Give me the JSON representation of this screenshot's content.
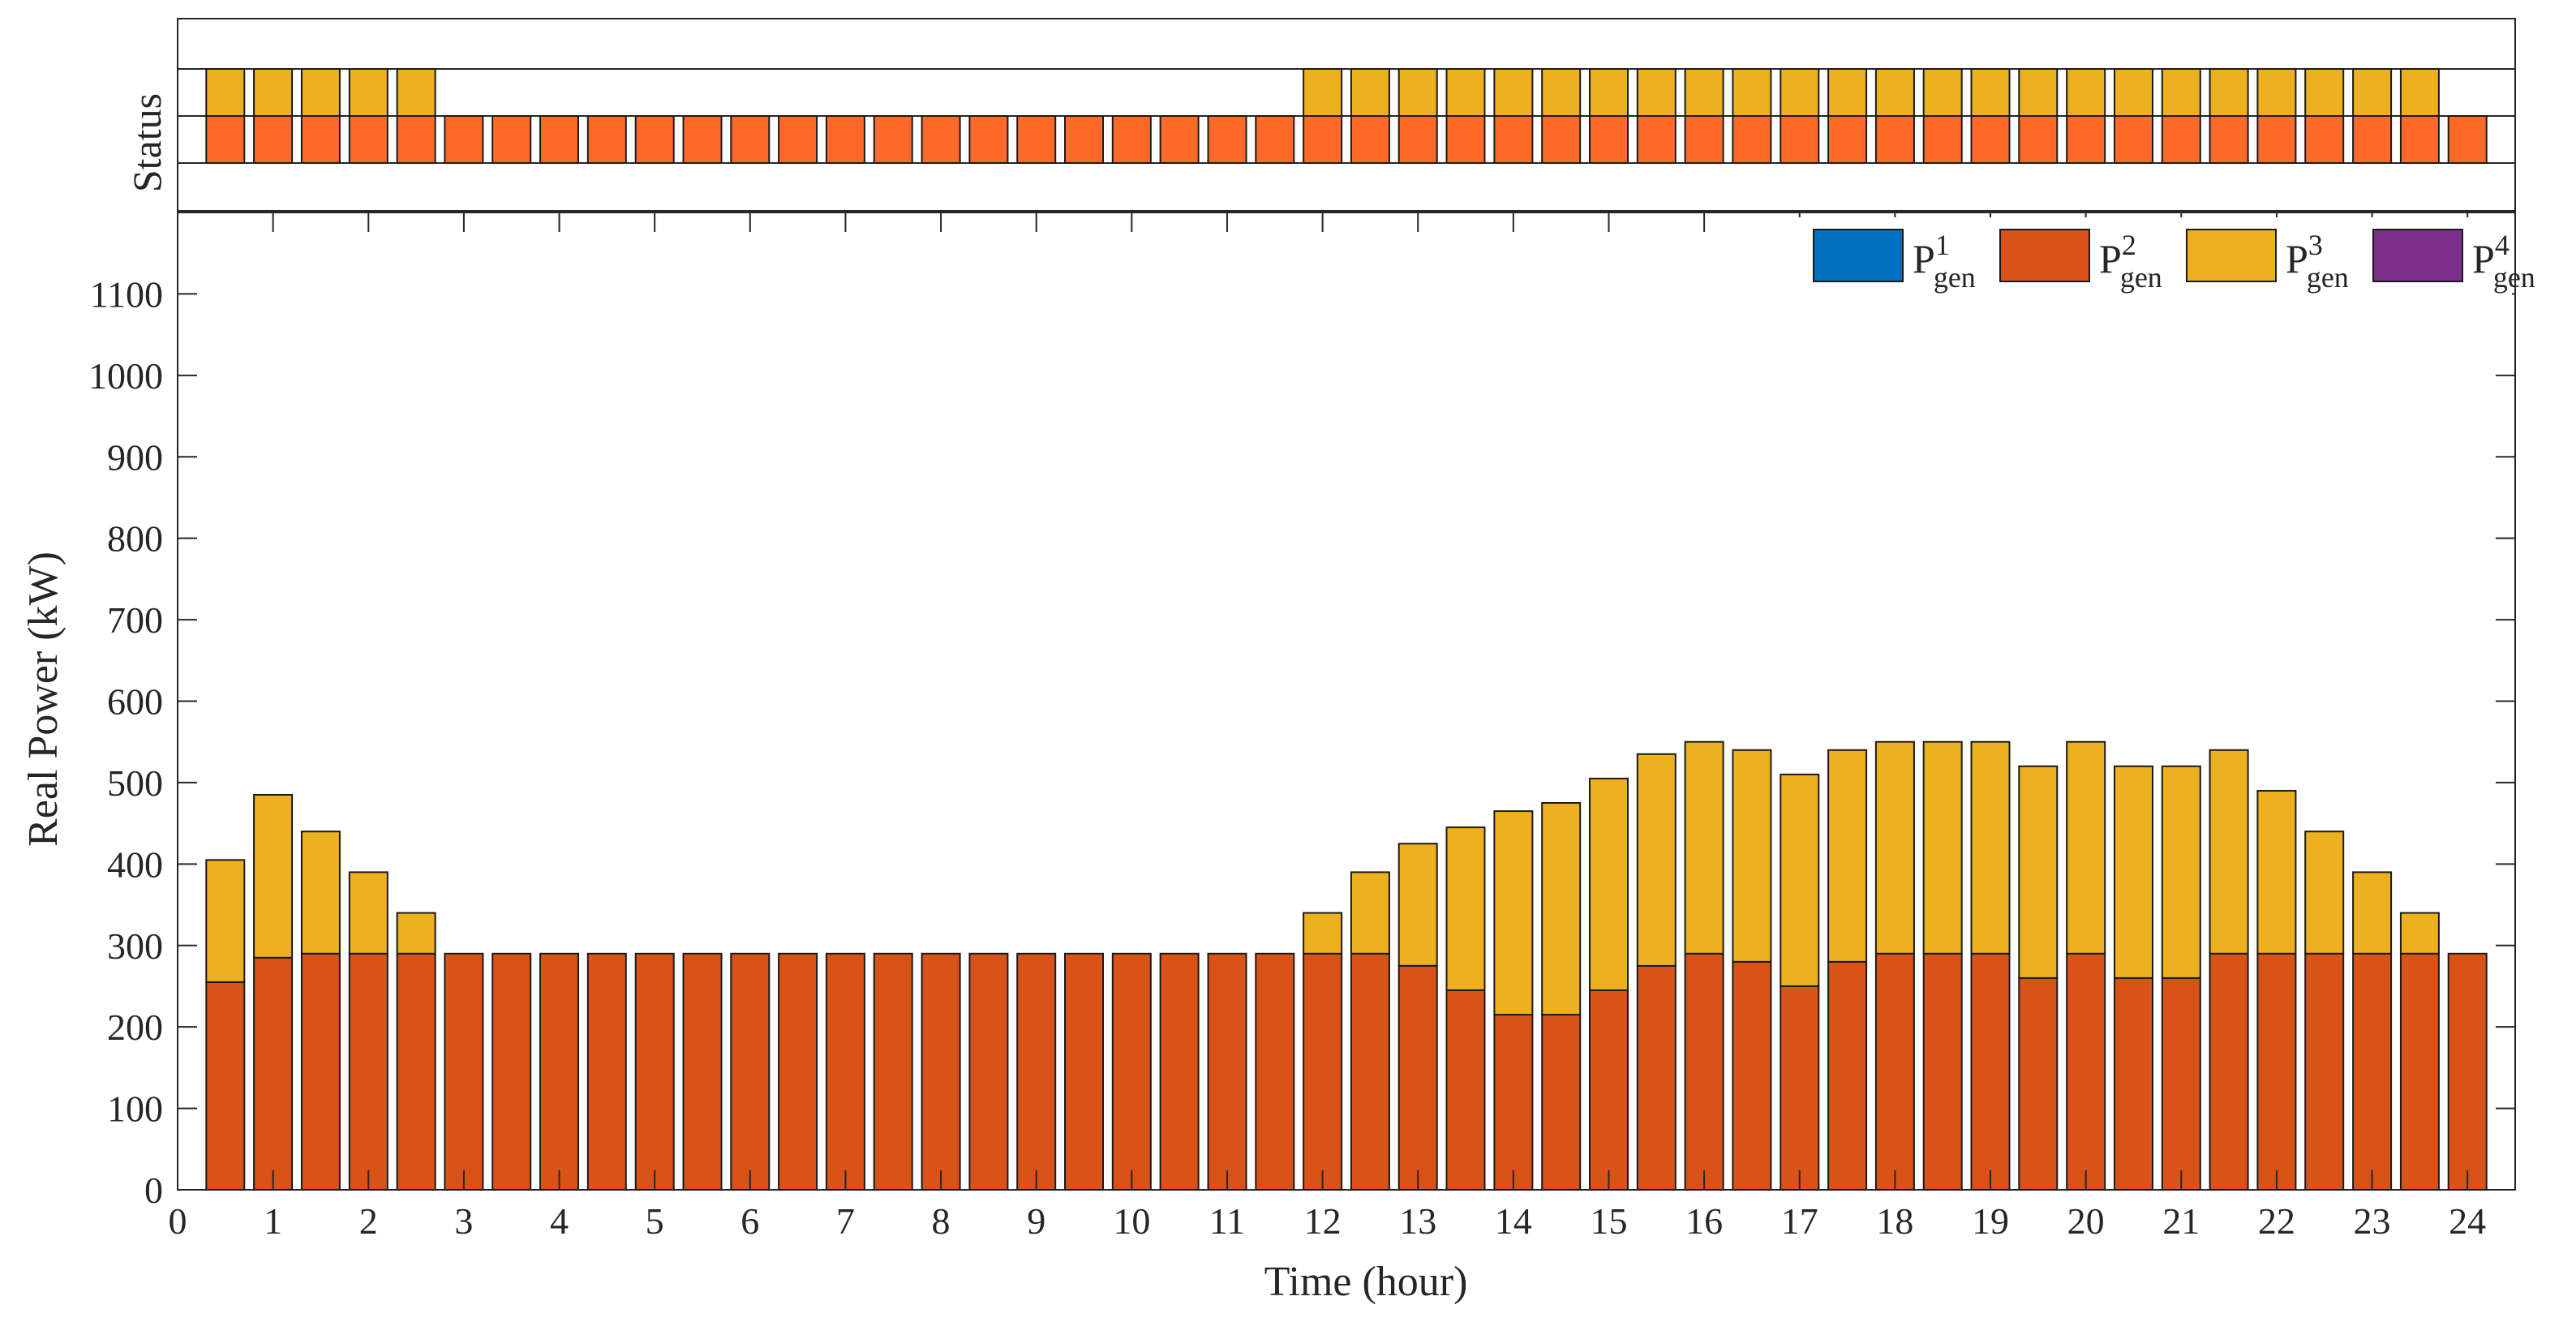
{
  "chart_data": {
    "type": "bar",
    "stacked": true,
    "xlabel": "Time (hour)",
    "ylabel": "Real Power (kW)",
    "status_label": "Status",
    "xlim": [
      0,
      24.5
    ],
    "ylim": [
      0,
      1200
    ],
    "x_ticks": [
      "0",
      "1",
      "2",
      "3",
      "4",
      "5",
      "6",
      "7",
      "8",
      "9",
      "10",
      "11",
      "12",
      "13",
      "14",
      "15",
      "16",
      "17",
      "18",
      "19",
      "20",
      "21",
      "22",
      "23",
      "24"
    ],
    "y_ticks": [
      "0",
      "100",
      "200",
      "300",
      "400",
      "500",
      "600",
      "700",
      "800",
      "900",
      "1000",
      "1100"
    ],
    "legend": {
      "position": "top-right",
      "entries": [
        {
          "base": "P",
          "sup": "1",
          "sub": "gen",
          "color": "#0072BD"
        },
        {
          "base": "P",
          "sup": "2",
          "sub": "gen",
          "color": "#D95319"
        },
        {
          "base": "P",
          "sup": "3",
          "sub": "gen",
          "color": "#EDB120"
        },
        {
          "base": "P",
          "sup": "4",
          "sub": "gen",
          "color": "#7E2F8E"
        }
      ]
    },
    "x": [
      0.5,
      1,
      1.5,
      2,
      2.5,
      3,
      3.5,
      4,
      4.5,
      5,
      5.5,
      6,
      6.5,
      7,
      7.5,
      8,
      8.5,
      9,
      9.5,
      10,
      10.5,
      11,
      11.5,
      12,
      12.5,
      13,
      13.5,
      14,
      14.5,
      15,
      15.5,
      16,
      16.5,
      17,
      17.5,
      18,
      18.5,
      19,
      19.5,
      20,
      20.5,
      21,
      21.5,
      22,
      22.5,
      23,
      23.5,
      24
    ],
    "series": [
      {
        "name": "P1_gen",
        "color": "#0072BD",
        "values": [
          0,
          0,
          0,
          0,
          0,
          0,
          0,
          0,
          0,
          0,
          0,
          0,
          0,
          0,
          0,
          0,
          0,
          0,
          0,
          0,
          0,
          0,
          0,
          0,
          0,
          0,
          0,
          0,
          0,
          0,
          0,
          0,
          0,
          0,
          0,
          0,
          0,
          0,
          0,
          0,
          0,
          0,
          0,
          0,
          0,
          0,
          0,
          0
        ]
      },
      {
        "name": "P2_gen",
        "color": "#D95319",
        "values": [
          255,
          285,
          290,
          290,
          290,
          290,
          290,
          290,
          290,
          290,
          290,
          290,
          290,
          290,
          290,
          290,
          290,
          290,
          290,
          290,
          290,
          290,
          290,
          290,
          290,
          275,
          245,
          215,
          215,
          245,
          275,
          290,
          280,
          250,
          280,
          290,
          290,
          290,
          260,
          290,
          260,
          260,
          290,
          290,
          290,
          290,
          290,
          290
        ]
      },
      {
        "name": "P3_gen",
        "color": "#EDB120",
        "values": [
          150,
          200,
          150,
          100,
          50,
          0,
          0,
          0,
          0,
          0,
          0,
          0,
          0,
          0,
          0,
          0,
          0,
          0,
          0,
          0,
          0,
          0,
          0,
          50,
          100,
          150,
          200,
          250,
          260,
          260,
          260,
          260,
          260,
          260,
          260,
          260,
          260,
          260,
          260,
          260,
          260,
          260,
          250,
          200,
          150,
          100,
          50,
          0
        ]
      },
      {
        "name": "P4_gen",
        "color": "#7E2F8E",
        "values": [
          0,
          0,
          0,
          0,
          0,
          0,
          0,
          0,
          0,
          0,
          0,
          0,
          0,
          0,
          0,
          0,
          0,
          0,
          0,
          0,
          0,
          0,
          0,
          0,
          0,
          0,
          0,
          0,
          0,
          0,
          0,
          0,
          0,
          0,
          0,
          0,
          0,
          0,
          0,
          0,
          0,
          0,
          0,
          0,
          0,
          0,
          0,
          0
        ]
      }
    ],
    "status": {
      "gen2": {
        "color": "#FF6A2A",
        "on": [
          1,
          1,
          1,
          1,
          1,
          1,
          1,
          1,
          1,
          1,
          1,
          1,
          1,
          1,
          1,
          1,
          1,
          1,
          1,
          1,
          1,
          1,
          1,
          1,
          1,
          1,
          1,
          1,
          1,
          1,
          1,
          1,
          1,
          1,
          1,
          1,
          1,
          1,
          1,
          1,
          1,
          1,
          1,
          1,
          1,
          1,
          1,
          1
        ]
      },
      "gen3": {
        "color": "#EDB120",
        "on": [
          1,
          1,
          1,
          1,
          1,
          0,
          0,
          0,
          0,
          0,
          0,
          0,
          0,
          0,
          0,
          0,
          0,
          0,
          0,
          0,
          0,
          0,
          0,
          1,
          1,
          1,
          1,
          1,
          1,
          1,
          1,
          1,
          1,
          1,
          1,
          1,
          1,
          1,
          1,
          1,
          1,
          1,
          1,
          1,
          1,
          1,
          1,
          0
        ]
      }
    }
  }
}
